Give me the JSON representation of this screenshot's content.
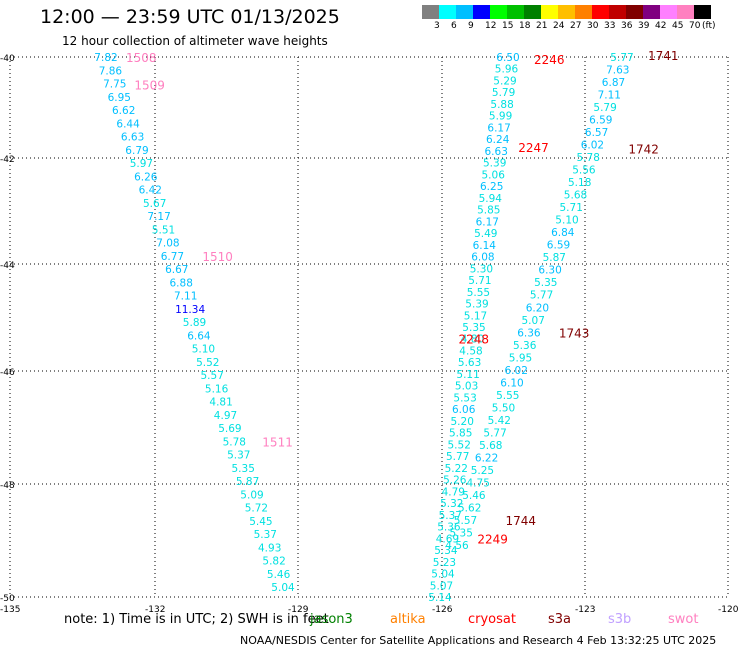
{
  "title": "12:00 — 23:59 UTC 01/13/2025",
  "subtitle": "12 hour collection of altimeter wave heights",
  "colorbar": {
    "colors": [
      "#808080",
      "#00ffff",
      "#00bfff",
      "#0000ff",
      "#00ff00",
      "#00c000",
      "#008000",
      "#ffff00",
      "#ffbf00",
      "#ff8000",
      "#ff0000",
      "#c00000",
      "#800000",
      "#800080",
      "#ff80ff",
      "#ff80c0",
      "#000000"
    ],
    "labels": [
      "3",
      "6",
      "9",
      "12",
      "15",
      "18",
      "21",
      "24",
      "27",
      "30",
      "33",
      "36",
      "39",
      "42",
      "45",
      "70",
      "(ft)"
    ]
  },
  "axes": {
    "lat_labels": [
      "-40",
      "-42",
      "-44",
      "-46",
      "-48",
      "-50"
    ],
    "lon_labels": [
      "-135",
      "-132",
      "-129",
      "-126",
      "-123",
      "-120"
    ]
  },
  "tracks": [
    {
      "color": "#00bfff",
      "values": [
        "7.82",
        "7.86",
        "7.75",
        "6.95",
        "6.62",
        "6.44",
        "6.63",
        "6.79",
        "5.97",
        "6.26",
        "6.42",
        "5.67",
        "7.17",
        "5.51",
        "7.08",
        "6.77",
        "6.67",
        "6.88",
        "7.11",
        "11.34",
        "5.89",
        "6.64",
        "5.10",
        "5.52",
        "5.57",
        "5.16",
        "4.81",
        "4.97",
        "5.69",
        "5.78",
        "5.37",
        "5.35",
        "5.87",
        "5.09",
        "5.72",
        "5.45",
        "5.37",
        "4.93",
        "5.82",
        "5.46",
        "5.04"
      ],
      "time_labels": [
        {
          "text": "1508",
          "color": "#ff80c0",
          "idx": 0
        },
        {
          "text": "1509",
          "color": "#ff80c0",
          "idx": 1
        },
        {
          "text": "1510",
          "color": "#ff80c0",
          "idx": 15
        },
        {
          "text": "1511",
          "color": "#ff80c0",
          "idx": 29
        }
      ]
    },
    {
      "color": "#00bfff",
      "values": [
        "6.50",
        "5.96",
        "5.29",
        "5.79",
        "5.88",
        "5.99",
        "6.17",
        "6.24",
        "6.63",
        "5.39",
        "5.06",
        "6.25",
        "5.94",
        "5.85",
        "6.17",
        "5.49",
        "6.14",
        "6.08",
        "5.30",
        "5.71",
        "5.55",
        "5.39",
        "5.17",
        "5.35",
        "4.80",
        "4.58",
        "5.63",
        "5.11",
        "5.03",
        "5.53",
        "6.06",
        "5.20",
        "5.85",
        "5.52",
        "5.77",
        "5.22",
        "5.26",
        "4.79",
        "5.32",
        "5.37",
        "5.36",
        "4.69",
        "5.34",
        "5.23",
        "5.04",
        "5.07",
        "5.14"
      ],
      "time_labels": [
        {
          "text": "2246",
          "color": "#ff0000",
          "idx": 0
        },
        {
          "text": "2247",
          "color": "#ff0000",
          "idx": 8
        },
        {
          "text": "2248",
          "color": "#ff0000",
          "idx": 24
        },
        {
          "text": "2249",
          "color": "#ff0000",
          "idx": 41
        }
      ]
    },
    {
      "color": "#00bfff",
      "values": [
        "5.77",
        "7.63",
        "6.87",
        "7.11",
        "5.79",
        "6.59",
        "6.57",
        "6.02",
        "5.78",
        "5.56",
        "5.18",
        "5.68",
        "5.71",
        "5.10",
        "6.84",
        "6.59",
        "5.87",
        "6.30",
        "5.35",
        "5.77",
        "6.20",
        "5.07",
        "6.36",
        "5.36",
        "5.95",
        "6.02",
        "6.10",
        "5.55",
        "5.50",
        "5.42",
        "5.77",
        "5.68",
        "6.22",
        "5.25",
        "4.75",
        "5.46",
        "5.62",
        "5.57",
        "5.35",
        "4.56"
      ],
      "time_labels": [
        {
          "text": "1741",
          "color": "#800000",
          "idx": 0
        },
        {
          "text": "1742",
          "color": "#800000",
          "idx": 7
        },
        {
          "text": "1743",
          "color": "#800000",
          "idx": 22
        },
        {
          "text": "1744",
          "color": "#800000",
          "idx": 37
        }
      ]
    }
  ],
  "note": "note: 1) Time is in UTC; 2) SWH is in feet",
  "legend": [
    {
      "name": "jason3",
      "color": "#008000"
    },
    {
      "name": "altika",
      "color": "#ff8000"
    },
    {
      "name": "cryosat",
      "color": "#ff0000"
    },
    {
      "name": "s3a",
      "color": "#800000"
    },
    {
      "name": "s3b",
      "color": "#c0a0ff"
    },
    {
      "name": "swot",
      "color": "#ff80c0"
    }
  ],
  "footer": "NOAA/NESDIS Center for Satellite Applications and Research     4 Feb 13:32:25 UTC 2025"
}
